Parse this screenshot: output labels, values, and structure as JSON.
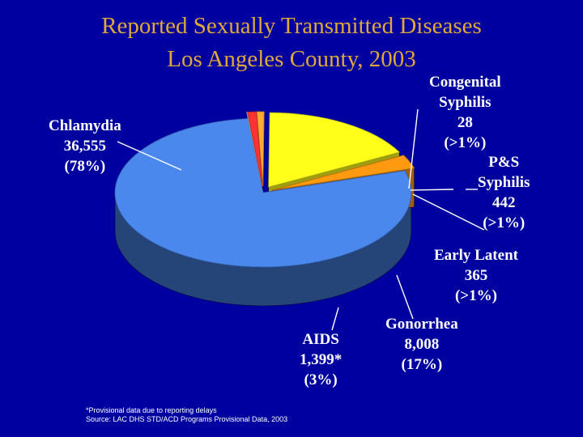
{
  "title_line1": "Reported Sexually Transmitted Diseases",
  "title_line2": "Los Angeles County, 2003",
  "footnote": {
    "line1": "*Provisional data due to reporting delays",
    "line2": "Source: LAC DHS STD/ACD  Programs Provisional Data, 2003"
  },
  "colors": {
    "background": "#0000A0",
    "title": "#E0A838",
    "chlamydia": "#4A88EE",
    "gonorrhea": "#FFFF1A",
    "aids": "#FF9910",
    "early_latent": "#FFAA33",
    "ps_syphilis": "#FF3333",
    "congenital_syphilis": "#E8E8E8"
  },
  "labels": {
    "chlamydia": {
      "line1": "Chlamydia",
      "line2": "36,555",
      "line3": "(78%)"
    },
    "congenital": {
      "line1": "Congenital",
      "line2": "Syphilis",
      "line3": "28",
      "line4": "(>1%)"
    },
    "ps_syphilis": {
      "line1": "P&S",
      "line2": "Syphilis",
      "line3": "442",
      "line4": "(>1%)"
    },
    "early_latent": {
      "line1": "Early Latent",
      "line2": "365",
      "line3": "(>1%)"
    },
    "gonorrhea": {
      "line1": "Gonorrhea",
      "line2": "8,008",
      "line3": "(17%)"
    },
    "aids": {
      "line1": "AIDS",
      "line2": "1,399*",
      "line3": "(3%)"
    }
  },
  "chart_data": {
    "type": "pie",
    "title": "Reported Sexually Transmitted Diseases Los Angeles County, 2003",
    "style": "3d-exploded",
    "slices": [
      {
        "key": "chlamydia",
        "name": "Chlamydia",
        "value": 36555,
        "percent_label": "(78%)",
        "exploded": false
      },
      {
        "key": "congenital_syphilis",
        "name": "Congenital Syphilis",
        "value": 28,
        "percent_label": "(>1%)",
        "exploded": true
      },
      {
        "key": "ps_syphilis",
        "name": "P&S Syphilis",
        "value": 442,
        "percent_label": "(>1%)",
        "exploded": true
      },
      {
        "key": "early_latent",
        "name": "Early Latent",
        "value": 365,
        "percent_label": "(>1%)",
        "exploded": true
      },
      {
        "key": "gonorrhea",
        "name": "Gonorrhea",
        "value": 8008,
        "percent_label": "(17%)",
        "exploded": true
      },
      {
        "key": "aids",
        "name": "AIDS",
        "value": 1399,
        "percent_label": "(3%)",
        "exploded": true
      }
    ]
  }
}
